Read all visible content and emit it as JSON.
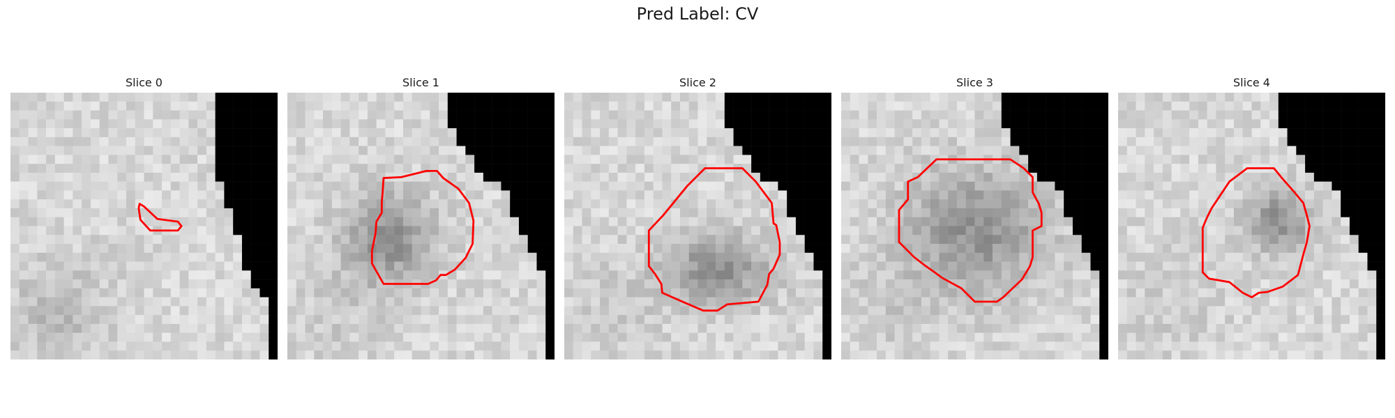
{
  "figure": {
    "title": "Pred Label: CV",
    "slices": [
      {
        "title": "Slice 0",
        "seed": 11,
        "lesion": [
          0.42,
          0.53,
          0.0,
          0.0
        ],
        "black_start": [
          22,
          22,
          22,
          22,
          22,
          22,
          22,
          22,
          22,
          22,
          23,
          23,
          23,
          23,
          24,
          24,
          24,
          25,
          25,
          25,
          25,
          26,
          26,
          26,
          27,
          28,
          28,
          28,
          28,
          28,
          28,
          28,
          28
        ],
        "contour": [
          [
            14.5,
            12.5
          ],
          [
            15,
            12.8
          ],
          [
            16.5,
            14.2
          ],
          [
            18.8,
            14.5
          ],
          [
            19.2,
            15
          ],
          [
            18.8,
            15.5
          ],
          [
            16.5,
            15.5
          ],
          [
            15.7,
            15.5
          ],
          [
            14.6,
            14.3
          ],
          [
            14.4,
            13
          ]
        ]
      },
      {
        "title": "Slice 1",
        "seed": 23,
        "lesion": [
          0.38,
          0.55,
          0.17,
          0.18
        ],
        "black_start": [
          17,
          17,
          17,
          17,
          18,
          18,
          19,
          20,
          20,
          21,
          22,
          23,
          24,
          24,
          24,
          25,
          25,
          26,
          26,
          27,
          27,
          28,
          28,
          28,
          28,
          28,
          28,
          28,
          28,
          28,
          28,
          28,
          28
        ],
        "contour": [
          [
            10.8,
            9.6
          ],
          [
            12.8,
            9.5
          ],
          [
            15.6,
            8.8
          ],
          [
            16.8,
            8.8
          ],
          [
            17.5,
            9.6
          ],
          [
            19.2,
            10.8
          ],
          [
            20.4,
            12.4
          ],
          [
            20.9,
            14.4
          ],
          [
            20.8,
            17
          ],
          [
            20,
            18.6
          ],
          [
            18.8,
            19.9
          ],
          [
            17.8,
            20.5
          ],
          [
            17.2,
            20.5
          ],
          [
            16.7,
            21.1
          ],
          [
            15.8,
            21.5
          ],
          [
            13.2,
            21.5
          ],
          [
            10.8,
            21.5
          ],
          [
            9.5,
            19.2
          ],
          [
            9.5,
            17.8
          ],
          [
            9.9,
            15.8
          ],
          [
            10,
            14.5
          ],
          [
            10.6,
            13.5
          ],
          [
            10.6,
            12.3
          ],
          [
            10.7,
            11.2
          ]
        ]
      },
      {
        "title": "Slice 2",
        "seed": 37,
        "lesion": [
          0.57,
          0.66,
          0.21,
          0.14
        ],
        "black_start": [
          17,
          17,
          17,
          17,
          18,
          18,
          19,
          20,
          20,
          21,
          22,
          23,
          24,
          24,
          24,
          25,
          25,
          26,
          26,
          27,
          27,
          28,
          28,
          28,
          28,
          28,
          28,
          28,
          28,
          28,
          28,
          28,
          28
        ],
        "contour": [
          [
            11.1,
            13.8
          ],
          [
            13.8,
            10.5
          ],
          [
            15.8,
            8.5
          ],
          [
            20,
            8.5
          ],
          [
            21.5,
            10
          ],
          [
            22.4,
            11.2
          ],
          [
            23.3,
            12.4
          ],
          [
            23.5,
            14.7
          ],
          [
            23.8,
            14.9
          ],
          [
            24.2,
            16.8
          ],
          [
            24.2,
            18.2
          ],
          [
            23.5,
            19.8
          ],
          [
            23,
            20.4
          ],
          [
            22.8,
            21.6
          ],
          [
            21.8,
            23.5
          ],
          [
            18.3,
            23.8
          ],
          [
            17.2,
            24.5
          ],
          [
            15.6,
            24.5
          ],
          [
            13.5,
            23.6
          ],
          [
            11,
            22.5
          ],
          [
            10.9,
            21.5
          ],
          [
            10.2,
            20.4
          ],
          [
            9.5,
            19.5
          ],
          [
            9.5,
            17.8
          ],
          [
            9.5,
            15.5
          ]
        ]
      },
      {
        "title": "Slice 3",
        "seed": 51,
        "lesion": [
          0.5,
          0.52,
          0.27,
          0.24
        ],
        "black_start": [
          17,
          17,
          17,
          17,
          18,
          18,
          19,
          20,
          20,
          21,
          22,
          23,
          24,
          24,
          24,
          25,
          25,
          26,
          26,
          27,
          27,
          28,
          28,
          28,
          28,
          28,
          28,
          28,
          28,
          28,
          28,
          28,
          28
        ],
        "contour": [
          [
            8.6,
            9.5
          ],
          [
            10.7,
            7.5
          ],
          [
            13.4,
            7.5
          ],
          [
            19,
            7.5
          ],
          [
            20.5,
            8.5
          ],
          [
            21.5,
            9.5
          ],
          [
            21.5,
            11.2
          ],
          [
            22.2,
            12.5
          ],
          [
            22.5,
            13.5
          ],
          [
            22.5,
            15
          ],
          [
            21.5,
            15.5
          ],
          [
            21.5,
            17
          ],
          [
            21.5,
            18.5
          ],
          [
            21.2,
            19.5
          ],
          [
            20.3,
            21
          ],
          [
            18.2,
            23
          ],
          [
            17.5,
            23.5
          ],
          [
            15,
            23.5
          ],
          [
            13.5,
            22
          ],
          [
            11.3,
            20.8
          ],
          [
            10.5,
            20.2
          ],
          [
            9.5,
            19.5
          ],
          [
            8.2,
            18.5
          ],
          [
            6.5,
            16.8
          ],
          [
            6.5,
            13.2
          ],
          [
            7.5,
            12
          ],
          [
            7.5,
            10
          ]
        ]
      },
      {
        "title": "Slice 4",
        "seed": 67,
        "lesion": [
          0.6,
          0.48,
          0.13,
          0.12
        ],
        "black_start": [
          17,
          17,
          17,
          17,
          18,
          18,
          19,
          20,
          20,
          21,
          22,
          23,
          24,
          24,
          24,
          25,
          25,
          26,
          26,
          27,
          27,
          28,
          28,
          28,
          28,
          28,
          28,
          28,
          28,
          28,
          28,
          28,
          28
        ],
        "contour": [
          [
            12.5,
            10
          ],
          [
            14.5,
            8.5
          ],
          [
            16.7,
            8.5
          ],
          [
            17.5,
            8.5
          ],
          [
            18.4,
            9.6
          ],
          [
            19.8,
            11.2
          ],
          [
            20.8,
            12.4
          ],
          [
            21.2,
            13.8
          ],
          [
            21.5,
            15
          ],
          [
            21.2,
            16.8
          ],
          [
            20.8,
            18.2
          ],
          [
            20.2,
            20.5
          ],
          [
            18.5,
            21.8
          ],
          [
            16.8,
            22.4
          ],
          [
            15.8,
            22.5
          ],
          [
            15,
            23
          ],
          [
            14,
            22.5
          ],
          [
            12.5,
            21.3
          ],
          [
            10.2,
            20.9
          ],
          [
            9.5,
            20.2
          ],
          [
            9.5,
            18
          ],
          [
            9.5,
            15.2
          ],
          [
            10,
            14
          ],
          [
            10.5,
            13
          ],
          [
            11.5,
            11.5
          ]
        ]
      }
    ]
  }
}
